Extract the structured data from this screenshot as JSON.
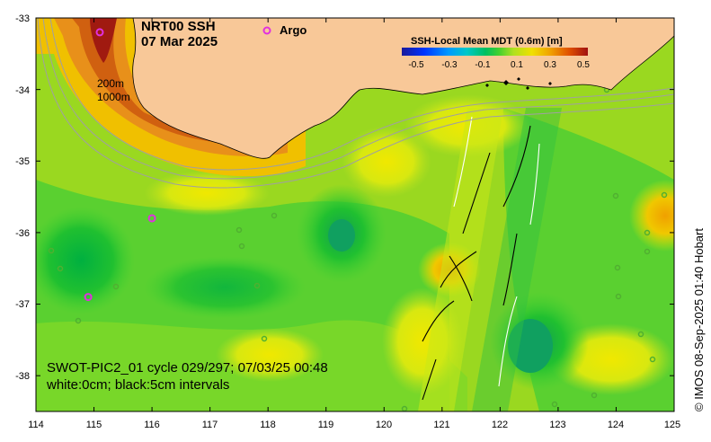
{
  "title_line1": "NRT00 SSH",
  "title_line2": "07 Mar 2025",
  "legend": {
    "marker_label": "Argo",
    "marker_color": "#e030e0"
  },
  "isobaths": {
    "shallow": "200m",
    "deep": "1000m"
  },
  "colorbar": {
    "title": "SSH-Local Mean MDT (0.6m) [m]",
    "ticks": [
      "-0.5",
      "-0.3",
      "-0.1",
      "0.1",
      "0.3",
      "0.5"
    ],
    "range": [
      -0.5,
      0.5
    ],
    "colors": [
      "#1a1a9a",
      "#0033ff",
      "#0099ff",
      "#00c8c8",
      "#00c060",
      "#40d030",
      "#b0e020",
      "#f0e000",
      "#f0a000",
      "#e05000",
      "#a01010"
    ]
  },
  "footer": {
    "line1": "SWOT-PIC2_01 cycle 029/297; 07/03/25 00:48",
    "line2": "white:0cm; black:5cm intervals"
  },
  "credit": "© IMOS 08-Sep-2025 01:40 Hobart",
  "axes": {
    "x_range": [
      114,
      125
    ],
    "y_range": [
      -38.5,
      -33
    ],
    "x_ticks": [
      "114",
      "115",
      "116",
      "117",
      "118",
      "119",
      "120",
      "121",
      "122",
      "123",
      "124",
      "125"
    ],
    "y_ticks": [
      "-33",
      "-34",
      "-35",
      "-36",
      "-37",
      "-38"
    ]
  },
  "colors": {
    "land": "#f8c898",
    "isobath": "#a0a0a0",
    "frame": "#000000"
  },
  "argo_floats": [
    {
      "lon": 115.1,
      "lat": -33.2
    },
    {
      "lon": 116.0,
      "lat": -35.8
    },
    {
      "lon": 114.9,
      "lat": -36.9
    }
  ]
}
